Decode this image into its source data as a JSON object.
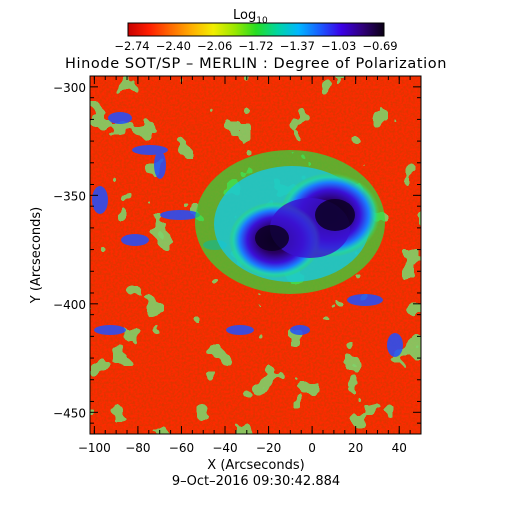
{
  "colorbar": {
    "label": "Log",
    "label_subscript": "10",
    "tick_labels": [
      "−2.74",
      "−2.40",
      "−2.06",
      "−1.72",
      "−1.37",
      "−1.03",
      "−0.69"
    ],
    "range": [
      -2.74,
      -0.69
    ],
    "colormap": [
      "#c80000",
      "#ff1e00",
      "#ff6a00",
      "#ffb000",
      "#f2ee00",
      "#9ae800",
      "#27dc22",
      "#00d6a0",
      "#00b6ff",
      "#1a5cff",
      "#3b00e6",
      "#30007a",
      "#0a0014"
    ]
  },
  "title": "Hinode SOT/SP – MERLIN : Degree of Polarization",
  "x_axis": {
    "label": "X (Arcseconds)",
    "range": [
      -102,
      50
    ],
    "tick_labels": [
      "−100",
      "−80",
      "−60",
      "−40",
      "−20",
      "0",
      "20",
      "40"
    ],
    "tick_values": [
      -100,
      -80,
      -60,
      -40,
      -20,
      0,
      20,
      40
    ]
  },
  "y_axis": {
    "label": "Y (Arcseconds)",
    "range": [
      -460,
      -295
    ],
    "tick_labels": [
      "−300",
      "−350",
      "−400",
      "−450"
    ],
    "tick_values": [
      -300,
      -350,
      -400,
      -450
    ]
  },
  "timestamp": "9–Oct–2016 09:30:42.884"
}
